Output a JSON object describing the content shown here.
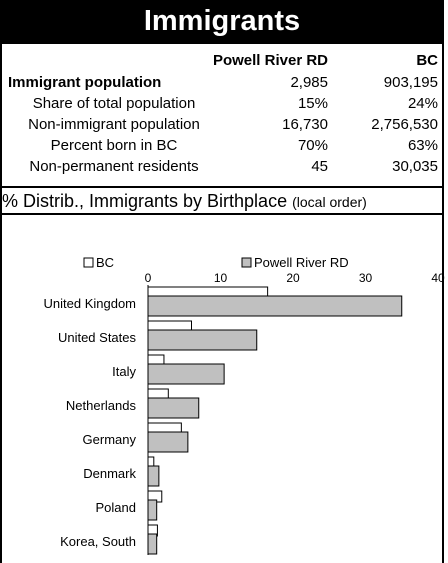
{
  "header": {
    "title": "Immigrants"
  },
  "table": {
    "col_region": "Powell River RD",
    "col_province": "BC",
    "rows": [
      {
        "label": "Immigrant population",
        "bold": true,
        "region": "2,985",
        "province": "903,195"
      },
      {
        "label": "Share of total population",
        "bold": false,
        "region": "15%",
        "province": "24%"
      },
      {
        "label": "Non-immigrant population",
        "bold": false,
        "region": "16,730",
        "province": "2,756,530"
      },
      {
        "label": "Percent born in BC",
        "bold": false,
        "region": "70%",
        "province": "63%"
      },
      {
        "label": "Non-permanent residents",
        "bold": false,
        "region": "45",
        "province": "30,035"
      }
    ]
  },
  "section": {
    "title": "% Distrib., Immigrants by Birthplace",
    "note": "(local order)"
  },
  "chart_data": {
    "type": "bar",
    "orientation": "horizontal",
    "categories": [
      "United Kingdom",
      "United States",
      "Italy",
      "Netherlands",
      "Germany",
      "Denmark",
      "Poland",
      "Korea, South"
    ],
    "series": [
      {
        "name": "BC",
        "values": [
          16.5,
          6,
          2.2,
          2.8,
          4.6,
          0.8,
          1.9,
          1.3
        ],
        "color": "#ffffff"
      },
      {
        "name": "Powell River RD",
        "values": [
          35,
          15,
          10.5,
          7,
          5.5,
          1.5,
          1.2,
          1.2
        ],
        "color": "#c0c0c0"
      }
    ],
    "xlim": [
      0,
      40
    ],
    "xticks": [
      0,
      10,
      20,
      30,
      40
    ],
    "legend": "top",
    "grid": false
  }
}
